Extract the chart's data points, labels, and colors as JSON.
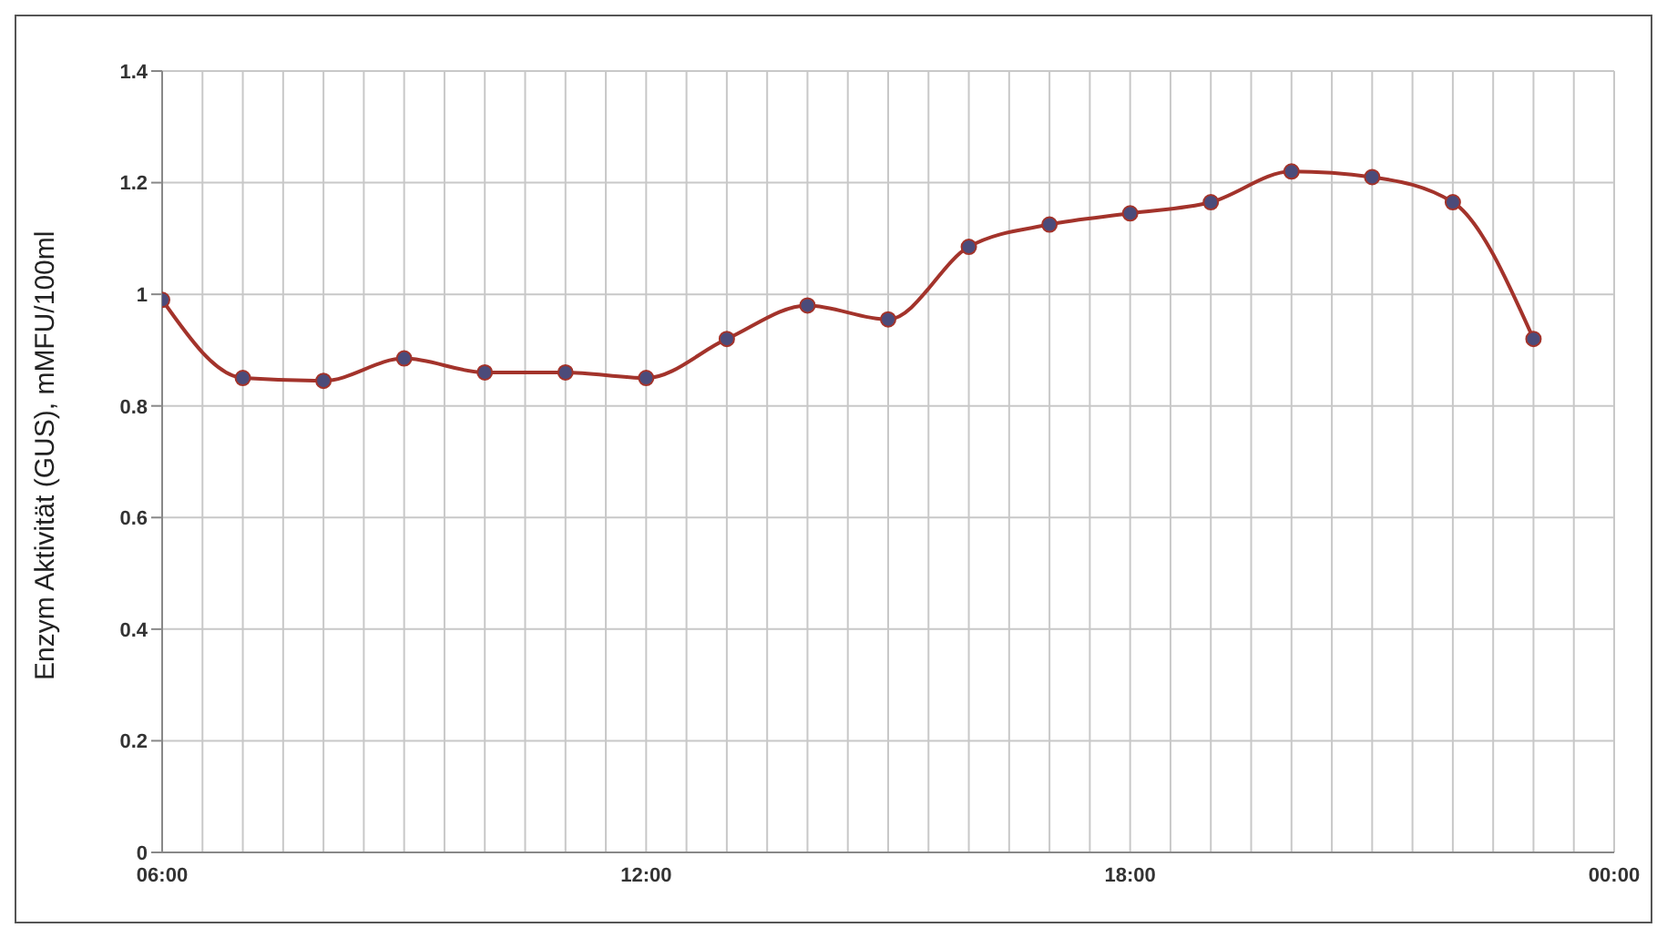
{
  "chart_data": {
    "type": "line",
    "ylabel": "Enzym Aktivität (GUS), mMFU/100ml",
    "x": [
      6,
      7,
      8,
      9,
      10,
      11,
      12,
      13,
      14,
      15,
      16,
      17,
      18,
      19,
      20,
      21,
      22,
      23
    ],
    "series": [
      {
        "color": "#a3332b",
        "values": [
          0.99,
          0.85,
          0.845,
          0.885,
          0.86,
          0.86,
          0.85,
          0.92,
          0.98,
          0.955,
          1.085,
          1.125,
          1.145,
          1.165,
          1.22,
          1.21,
          1.165,
          0.92
        ]
      }
    ],
    "xlim": [
      6,
      24
    ],
    "xticks": [
      {
        "value": 6,
        "label": "06:00"
      },
      {
        "value": 6.5,
        "label": null
      },
      {
        "value": 7,
        "label": null
      },
      {
        "value": 7.5,
        "label": null
      },
      {
        "value": 8,
        "label": null
      },
      {
        "value": 8.5,
        "label": null
      },
      {
        "value": 9,
        "label": null
      },
      {
        "value": 9.5,
        "label": null
      },
      {
        "value": 10,
        "label": null
      },
      {
        "value": 10.5,
        "label": null
      },
      {
        "value": 11,
        "label": null
      },
      {
        "value": 11.5,
        "label": null
      },
      {
        "value": 12,
        "label": "12:00"
      },
      {
        "value": 12.5,
        "label": null
      },
      {
        "value": 13,
        "label": null
      },
      {
        "value": 13.5,
        "label": null
      },
      {
        "value": 14,
        "label": null
      },
      {
        "value": 14.5,
        "label": null
      },
      {
        "value": 15,
        "label": null
      },
      {
        "value": 15.5,
        "label": null
      },
      {
        "value": 16,
        "label": null
      },
      {
        "value": 16.5,
        "label": null
      },
      {
        "value": 17,
        "label": null
      },
      {
        "value": 17.5,
        "label": null
      },
      {
        "value": 18,
        "label": "18:00"
      },
      {
        "value": 18.5,
        "label": null
      },
      {
        "value": 19,
        "label": null
      },
      {
        "value": 19.5,
        "label": null
      },
      {
        "value": 20,
        "label": null
      },
      {
        "value": 20.5,
        "label": null
      },
      {
        "value": 21,
        "label": null
      },
      {
        "value": 21.5,
        "label": null
      },
      {
        "value": 22,
        "label": null
      },
      {
        "value": 22.5,
        "label": null
      },
      {
        "value": 23,
        "label": null
      },
      {
        "value": 23.5,
        "label": null
      },
      {
        "value": 24,
        "label": "00:00"
      }
    ],
    "ylim": [
      0,
      1.4
    ],
    "yticks": [
      0,
      0.2,
      0.4,
      0.6,
      0.8,
      1,
      1.2,
      1.4
    ],
    "grid": true,
    "marker": "circle",
    "line_style": "solid",
    "legend": false
  }
}
